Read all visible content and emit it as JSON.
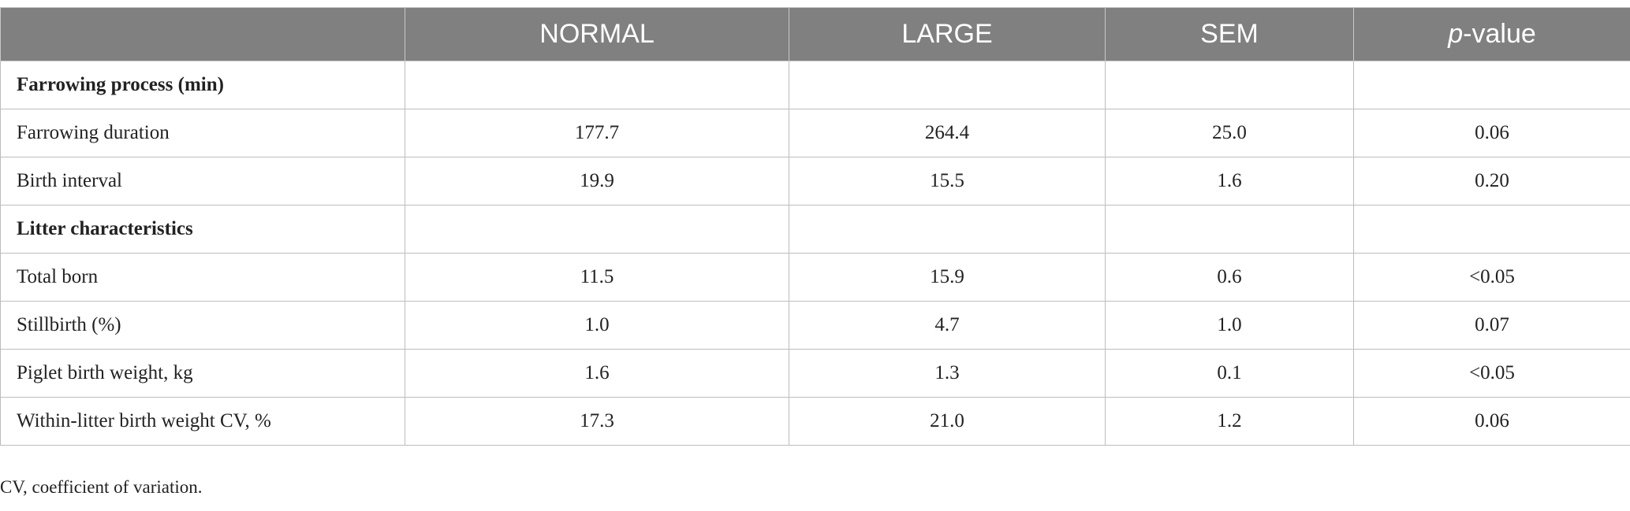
{
  "table": {
    "columns": [
      "NORMAL",
      "LARGE",
      "SEM",
      "p-value"
    ],
    "sections": [
      {
        "title": "Farrowing process (min)",
        "rows": [
          [
            "Farrowing duration",
            "177.7",
            "264.4",
            "25.0",
            "0.06"
          ],
          [
            "Birth interval",
            "19.9",
            "15.5",
            "1.6",
            "0.20"
          ]
        ]
      },
      {
        "title": "Litter characteristics",
        "rows": [
          [
            "Total born",
            "11.5",
            "15.9",
            "0.6",
            "<0.05"
          ],
          [
            "Stillbirth (%)",
            "1.0",
            "4.7",
            "1.0",
            "0.07"
          ],
          [
            "Piglet birth weight, kg",
            "1.6",
            "1.3",
            "0.1",
            "<0.05"
          ],
          [
            "Within-litter birth weight CV, %",
            "17.3",
            "21.0",
            "1.2",
            "0.06"
          ]
        ]
      }
    ]
  },
  "footnote": "CV, coefficient of variation."
}
